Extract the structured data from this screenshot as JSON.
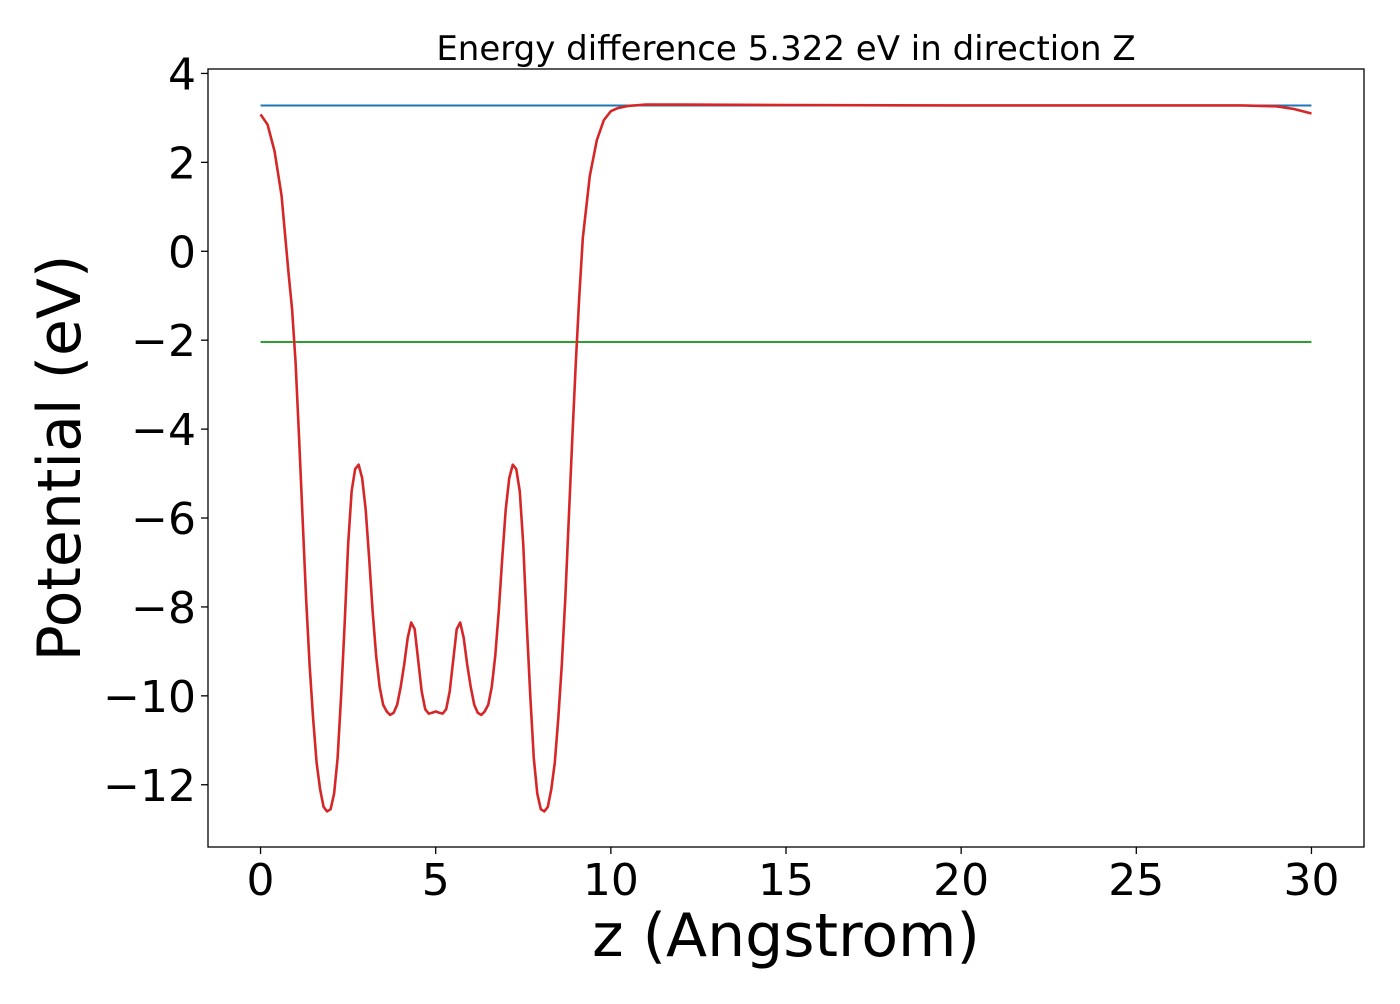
{
  "chart_data": {
    "type": "line",
    "title": "Energy difference 5.322 eV in direction Z",
    "xlabel": "z (Angstrom)",
    "ylabel": "Potential (eV)",
    "xlim": [
      -1.5,
      31.5
    ],
    "ylim": [
      -13.4,
      4.1
    ],
    "x_ticks": [
      0,
      5,
      10,
      15,
      20,
      25,
      30
    ],
    "y_ticks": [
      4,
      2,
      0,
      -2,
      -4,
      -6,
      -8,
      -10,
      -12
    ],
    "x_tick_labels": [
      "0",
      "5",
      "10",
      "15",
      "20",
      "25",
      "30"
    ],
    "y_tick_labels": [
      "4",
      "2",
      "0",
      "−2",
      "−4",
      "−6",
      "−8",
      "−10",
      "−12"
    ],
    "grid": false,
    "legend": "none",
    "series": [
      {
        "color": "#1f77b4",
        "x": [
          0,
          30
        ],
        "y": [
          3.28,
          3.28
        ]
      },
      {
        "color": "#2ca02c",
        "x": [
          0,
          30
        ],
        "y": [
          -2.04,
          -2.04
        ]
      },
      {
        "color": "#d62728",
        "x": [
          0,
          0.2,
          0.4,
          0.6,
          0.8,
          0.9,
          1.0,
          1.1,
          1.2,
          1.3,
          1.4,
          1.5,
          1.6,
          1.7,
          1.8,
          1.9,
          2.0,
          2.1,
          2.2,
          2.3,
          2.4,
          2.5,
          2.6,
          2.7,
          2.8,
          2.9,
          3.0,
          3.1,
          3.2,
          3.3,
          3.4,
          3.5,
          3.6,
          3.7,
          3.8,
          3.9,
          4.0,
          4.1,
          4.2,
          4.3,
          4.4,
          4.5,
          4.6,
          4.7,
          4.8,
          4.9,
          5.0,
          5.1,
          5.2,
          5.3,
          5.4,
          5.5,
          5.6,
          5.7,
          5.8,
          5.9,
          6.0,
          6.1,
          6.2,
          6.3,
          6.4,
          6.5,
          6.6,
          6.7,
          6.8,
          6.9,
          7.0,
          7.1,
          7.2,
          7.3,
          7.4,
          7.5,
          7.6,
          7.7,
          7.8,
          7.9,
          8.0,
          8.1,
          8.2,
          8.3,
          8.4,
          8.5,
          8.6,
          8.7,
          8.8,
          8.9,
          9.0,
          9.1,
          9.2,
          9.4,
          9.6,
          9.8,
          10.0,
          10.2,
          10.5,
          11.0,
          12.0,
          15.0,
          20.0,
          25.0,
          28.0,
          29.0,
          29.5,
          30.0
        ],
        "y": [
          3.08,
          2.85,
          2.25,
          1.25,
          -0.5,
          -1.3,
          -2.5,
          -4.2,
          -6.0,
          -7.8,
          -9.3,
          -10.5,
          -11.5,
          -12.1,
          -12.5,
          -12.6,
          -12.55,
          -12.2,
          -11.4,
          -10.0,
          -8.4,
          -6.6,
          -5.4,
          -4.9,
          -4.8,
          -5.1,
          -5.8,
          -6.9,
          -8.1,
          -9.1,
          -9.8,
          -10.2,
          -10.35,
          -10.43,
          -10.38,
          -10.2,
          -9.8,
          -9.3,
          -8.7,
          -8.35,
          -8.5,
          -9.2,
          -9.9,
          -10.3,
          -10.4,
          -10.38,
          -10.35,
          -10.38,
          -10.4,
          -10.3,
          -9.9,
          -9.2,
          -8.5,
          -8.35,
          -8.7,
          -9.3,
          -9.8,
          -10.2,
          -10.38,
          -10.43,
          -10.35,
          -10.2,
          -9.8,
          -9.1,
          -8.1,
          -6.9,
          -5.8,
          -5.1,
          -4.8,
          -4.9,
          -5.4,
          -6.6,
          -8.4,
          -10.0,
          -11.4,
          -12.2,
          -12.55,
          -12.6,
          -12.5,
          -12.1,
          -11.5,
          -10.5,
          -9.3,
          -7.8,
          -6.0,
          -4.2,
          -2.5,
          -1.0,
          0.3,
          1.7,
          2.5,
          2.95,
          3.15,
          3.22,
          3.27,
          3.3,
          3.3,
          3.29,
          3.28,
          3.28,
          3.28,
          3.26,
          3.2,
          3.1
        ]
      }
    ]
  }
}
